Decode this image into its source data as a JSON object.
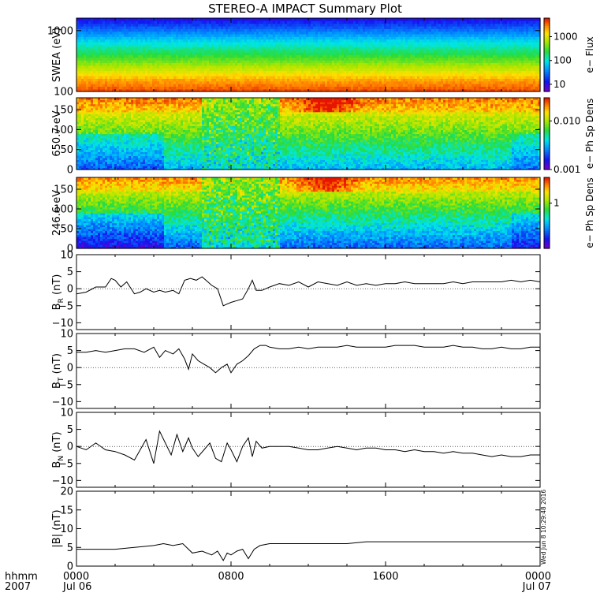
{
  "title": "STEREO-A IMPACT Summary Plot",
  "timestamp": "Wed Jun  8 10:29:48 2016",
  "x_axis": {
    "row1_label": "hhmm",
    "row2_label": "2007",
    "ticks": [
      {
        "hours": 0,
        "time": "0000",
        "date": "Jul 06"
      },
      {
        "hours": 8,
        "time": "0800",
        "date": ""
      },
      {
        "hours": 16,
        "time": "1600",
        "date": ""
      },
      {
        "hours": 24,
        "time": "0000",
        "date": "Jul 07"
      }
    ]
  },
  "chart_data": [
    {
      "type": "heatmap",
      "ylabel": "SWEA (eV)",
      "yscale": "log",
      "ylim": [
        100,
        1600
      ],
      "yticks": [
        {
          "value": 100,
          "label": "100"
        },
        {
          "value": 1000,
          "label": "1000"
        }
      ],
      "colorbar_label": "e− Flux",
      "colorbar_scale": "log",
      "colorbar_range": [
        5,
        6000
      ],
      "colorbar_ticks": [
        {
          "value": 10,
          "label": "10"
        },
        {
          "value": 100,
          "label": "100"
        },
        {
          "value": 1000,
          "label": "1000"
        }
      ],
      "rows_low_to_high_energy": [
        0.96,
        0.86,
        0.7,
        0.55,
        0.42,
        0.26,
        0.12
      ]
    },
    {
      "type": "heatmap",
      "ylabel": "650.7 eV",
      "ylim": [
        0,
        180
      ],
      "yticks": [
        {
          "value": 0,
          "label": "0"
        },
        {
          "value": 50,
          "label": "50"
        },
        {
          "value": 100,
          "label": "100"
        },
        {
          "value": 150,
          "label": "150"
        }
      ],
      "colorbar_label": "e− Ph Sp Dens",
      "colorbar_scale": "log",
      "colorbar_range": [
        0.001,
        0.03
      ],
      "colorbar_ticks": [
        {
          "value": 0.001,
          "label": "0.001"
        },
        {
          "value": 0.01,
          "label": "0.010"
        }
      ]
    },
    {
      "type": "heatmap",
      "ylabel": "246.6 eV",
      "ylim": [
        0,
        180
      ],
      "yticks": [
        {
          "value": 0,
          "label": "0"
        },
        {
          "value": 50,
          "label": "50"
        },
        {
          "value": 100,
          "label": "100"
        },
        {
          "value": 150,
          "label": "150"
        }
      ],
      "colorbar_label": "e− Ph Sp Dens",
      "colorbar_scale": "log",
      "colorbar_range": [
        0.2,
        2.5
      ],
      "colorbar_ticks": [
        {
          "value": 1,
          "label": "1"
        }
      ]
    },
    {
      "type": "line",
      "ylabel": "B_R (nT)",
      "ylabel_main": "B",
      "ylabel_sub": "R",
      "ylabel_unit": " (nT)",
      "ylim": [
        -12,
        10
      ],
      "yticks": [
        {
          "value": -10,
          "label": "−10"
        },
        {
          "value": -5,
          "label": "−5"
        },
        {
          "value": 0,
          "label": "0"
        },
        {
          "value": 5,
          "label": "5"
        },
        {
          "value": 10,
          "label": "10"
        }
      ],
      "hours": [
        0,
        0.5,
        1,
        1.5,
        1.8,
        2,
        2.3,
        2.6,
        3,
        3.3,
        3.6,
        4,
        4.3,
        4.6,
        5,
        5.3,
        5.6,
        5.9,
        6.2,
        6.5,
        6.8,
        7,
        7.3,
        7.6,
        7.8,
        8.0,
        8.3,
        8.6,
        8.9,
        9.1,
        9.3,
        9.6,
        10,
        10.5,
        11,
        11.5,
        12,
        12.5,
        13,
        13.5,
        14,
        14.5,
        15,
        15.5,
        16,
        16.5,
        17,
        17.5,
        18,
        18.5,
        19,
        19.5,
        20,
        20.5,
        21,
        21.5,
        22,
        22.5,
        23,
        23.5,
        24
      ],
      "values": [
        -1.5,
        -1.0,
        0.5,
        0.5,
        3.0,
        2.5,
        0.5,
        2.0,
        -1.5,
        -1.0,
        0.0,
        -1.0,
        -0.5,
        -1.0,
        -0.5,
        -1.5,
        2.5,
        3.0,
        2.5,
        3.5,
        2.0,
        1.0,
        0.0,
        -5.0,
        -4.5,
        -4.0,
        -3.5,
        -3.0,
        0.0,
        2.5,
        -0.5,
        -0.5,
        0.5,
        1.5,
        1.0,
        2.0,
        0.5,
        2.0,
        1.5,
        1.0,
        2.0,
        1.0,
        1.5,
        1.0,
        1.5,
        1.5,
        2.0,
        1.5,
        1.5,
        1.5,
        1.5,
        2.0,
        1.5,
        2.0,
        2.0,
        2.0,
        2.0,
        2.5,
        2.0,
        2.5,
        2.0
      ]
    },
    {
      "type": "line",
      "ylabel": "B_T (nT)",
      "ylabel_main": "B",
      "ylabel_sub": "T",
      "ylabel_unit": " (nT)",
      "ylim": [
        -12,
        10
      ],
      "yticks": [
        {
          "value": -10,
          "label": "−10"
        },
        {
          "value": -5,
          "label": "−5"
        },
        {
          "value": 0,
          "label": "0"
        },
        {
          "value": 5,
          "label": "5"
        },
        {
          "value": 10,
          "label": "10"
        }
      ],
      "hours": [
        0,
        0.5,
        1,
        1.5,
        2,
        2.5,
        3,
        3.5,
        4,
        4.3,
        4.6,
        5,
        5.3,
        5.6,
        5.8,
        6.0,
        6.3,
        6.6,
        6.9,
        7.2,
        7.5,
        7.8,
        8.0,
        8.3,
        8.6,
        8.9,
        9.2,
        9.5,
        9.8,
        10,
        10.5,
        11,
        11.5,
        12,
        12.5,
        13,
        13.5,
        14,
        14.5,
        15,
        15.5,
        16,
        16.5,
        17,
        17.5,
        18,
        18.5,
        19,
        19.5,
        20,
        20.5,
        21,
        21.5,
        22,
        22.5,
        23,
        23.5,
        24
      ],
      "values": [
        4.5,
        4.5,
        5.0,
        4.5,
        5.0,
        5.5,
        5.5,
        4.5,
        6.0,
        3.0,
        5.0,
        4.0,
        5.5,
        2.5,
        -0.5,
        4.0,
        2.0,
        1.0,
        0.0,
        -1.5,
        0.0,
        1.0,
        -1.5,
        1.0,
        2.0,
        3.5,
        5.5,
        6.5,
        6.5,
        6.0,
        5.5,
        5.5,
        6.0,
        5.5,
        6.0,
        6.0,
        6.0,
        6.5,
        6.0,
        6.0,
        6.0,
        6.0,
        6.5,
        6.5,
        6.5,
        6.0,
        6.0,
        6.0,
        6.5,
        6.0,
        6.0,
        5.5,
        5.5,
        6.0,
        5.5,
        5.5,
        6.0,
        6.0
      ]
    },
    {
      "type": "line",
      "ylabel": "B_N (nT)",
      "ylabel_main": "B",
      "ylabel_sub": "N",
      "ylabel_unit": " (nT)",
      "ylim": [
        -12,
        10
      ],
      "yticks": [
        {
          "value": -10,
          "label": "−10"
        },
        {
          "value": -5,
          "label": "−5"
        },
        {
          "value": 0,
          "label": "0"
        },
        {
          "value": 5,
          "label": "5"
        },
        {
          "value": 10,
          "label": "10"
        }
      ],
      "hours": [
        0,
        0.5,
        1,
        1.5,
        2,
        2.5,
        3,
        3.3,
        3.6,
        4,
        4.3,
        4.6,
        4.9,
        5.2,
        5.5,
        5.8,
        6.0,
        6.3,
        6.6,
        6.9,
        7.2,
        7.5,
        7.8,
        8.0,
        8.3,
        8.6,
        8.9,
        9.1,
        9.3,
        9.6,
        10,
        10.5,
        11,
        11.5,
        12,
        12.5,
        13,
        13.5,
        14,
        14.5,
        15,
        15.5,
        16,
        16.5,
        17,
        17.5,
        18,
        18.5,
        19,
        19.5,
        20,
        20.5,
        21,
        21.5,
        22,
        22.5,
        23,
        23.5,
        24
      ],
      "values": [
        0.0,
        -1.0,
        1.0,
        -1.0,
        -1.5,
        -2.5,
        -4.0,
        -1.0,
        2.0,
        -5.0,
        4.5,
        1.0,
        -2.5,
        3.5,
        -1.5,
        2.5,
        -0.5,
        -3.0,
        -1.0,
        1.0,
        -3.5,
        -4.5,
        1.0,
        -1.0,
        -4.5,
        0.0,
        2.5,
        -3.0,
        1.5,
        -0.5,
        0.0,
        0.0,
        0.0,
        -0.5,
        -1.0,
        -1.0,
        -0.5,
        0.0,
        -0.5,
        -1.0,
        -0.5,
        -0.5,
        -1.0,
        -1.0,
        -1.5,
        -1.0,
        -1.5,
        -1.5,
        -2.0,
        -1.5,
        -2.0,
        -2.0,
        -2.5,
        -3.0,
        -2.5,
        -3.0,
        -3.0,
        -2.5,
        -2.5
      ]
    },
    {
      "type": "line",
      "ylabel": "|B| (nT)",
      "ylabel_main": "|B|",
      "ylabel_sub": "",
      "ylabel_unit": " (nT)",
      "ylim": [
        0,
        20
      ],
      "yticks": [
        {
          "value": 0,
          "label": "0"
        },
        {
          "value": 5,
          "label": "5"
        },
        {
          "value": 10,
          "label": "10"
        },
        {
          "value": 15,
          "label": "15"
        },
        {
          "value": 20,
          "label": "20"
        }
      ],
      "hours": [
        0,
        1,
        2,
        3,
        4,
        4.5,
        5,
        5.5,
        6.0,
        6.5,
        7.0,
        7.3,
        7.6,
        7.8,
        8.0,
        8.3,
        8.6,
        8.9,
        9.2,
        9.5,
        10,
        11,
        12,
        13,
        14,
        15,
        16,
        17,
        18,
        19,
        20,
        21,
        22,
        23,
        24
      ],
      "values": [
        4.5,
        4.5,
        4.5,
        5.0,
        5.5,
        6.0,
        5.5,
        6.0,
        3.5,
        4.0,
        3.0,
        4.0,
        1.5,
        3.5,
        3.0,
        4.0,
        4.5,
        2.0,
        4.5,
        5.5,
        6.0,
        6.0,
        6.0,
        6.0,
        6.0,
        6.5,
        6.5,
        6.5,
        6.5,
        6.5,
        6.5,
        6.5,
        6.5,
        6.5,
        6.5
      ]
    }
  ]
}
